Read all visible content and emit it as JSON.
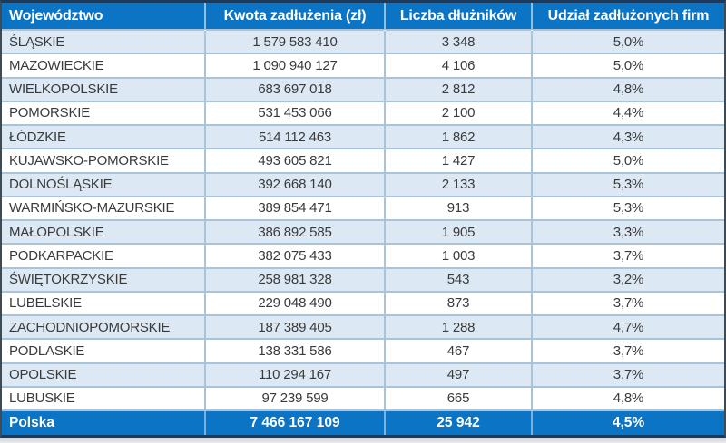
{
  "chart_data": {
    "type": "table",
    "columns": [
      "Województwo",
      "Kwota zadłużenia (zł)",
      "Liczba dłużników",
      "Udział zadłużonych firm"
    ],
    "rows": [
      [
        "ŚLĄSKIE",
        "1 579 583 410",
        "3 348",
        "5,0%"
      ],
      [
        "MAZOWIECKIE",
        "1 090 940 127",
        "4 106",
        "5,0%"
      ],
      [
        "WIELKOPOLSKIE",
        "683 697 018",
        "2 812",
        "4,8%"
      ],
      [
        "POMORSKIE",
        "531 453 066",
        "2 100",
        "4,4%"
      ],
      [
        "ŁÓDZKIE",
        "514 112 463",
        "1 862",
        "4,3%"
      ],
      [
        "KUJAWSKO-POMORSKIE",
        "493 605 821",
        "1 427",
        "5,0%"
      ],
      [
        "DOLNOŚLĄSKIE",
        "392 668 140",
        "2 133",
        "5,3%"
      ],
      [
        "WARMIŃSKO-MAZURSKIE",
        "389 854 471",
        "913",
        "5,3%"
      ],
      [
        "MAŁOPOLSKIE",
        "386 892 585",
        "1 905",
        "3,3%"
      ],
      [
        "PODKARPACKIE",
        "382 075 433",
        "1 003",
        "3,7%"
      ],
      [
        "ŚWIĘTOKRZYSKIE",
        "258 981 328",
        "543",
        "3,2%"
      ],
      [
        "LUBELSKIE",
        "229 048 490",
        "873",
        "3,7%"
      ],
      [
        "ZACHODNIOPOMORSKIE",
        "187 389 405",
        "1 288",
        "4,7%"
      ],
      [
        "PODLASKIE",
        "138 331 586",
        "467",
        "3,7%"
      ],
      [
        "OPOLSKIE",
        "110 294 167",
        "497",
        "3,7%"
      ],
      [
        "LUBUSKIE",
        "97 239 599",
        "665",
        "4,8%"
      ]
    ],
    "total_row": [
      "Polska",
      "7 466 167 109",
      "25 942",
      "4,5%"
    ]
  },
  "table": {
    "header": {
      "region": "Województwo",
      "debt": "Kwota zadłużenia (zł)",
      "debtors": "Liczba dłużników",
      "share": "Udział zadłużonych firm"
    },
    "rows": [
      {
        "region": "ŚLĄSKIE",
        "debt": "1 579 583 410",
        "debtors": "3 348",
        "share": "5,0%"
      },
      {
        "region": "MAZOWIECKIE",
        "debt": "1 090 940 127",
        "debtors": "4 106",
        "share": "5,0%"
      },
      {
        "region": "WIELKOPOLSKIE",
        "debt": "683 697 018",
        "debtors": "2 812",
        "share": "4,8%"
      },
      {
        "region": "POMORSKIE",
        "debt": "531 453 066",
        "debtors": "2 100",
        "share": "4,4%"
      },
      {
        "region": "ŁÓDZKIE",
        "debt": "514 112 463",
        "debtors": "1 862",
        "share": "4,3%"
      },
      {
        "region": "KUJAWSKO-POMORSKIE",
        "debt": "493 605 821",
        "debtors": "1 427",
        "share": "5,0%"
      },
      {
        "region": "DOLNOŚLĄSKIE",
        "debt": "392 668 140",
        "debtors": "2 133",
        "share": "5,3%"
      },
      {
        "region": "WARMIŃSKO-MAZURSKIE",
        "debt": "389 854 471",
        "debtors": "913",
        "share": "5,3%"
      },
      {
        "region": "MAŁOPOLSKIE",
        "debt": "386 892 585",
        "debtors": "1 905",
        "share": "3,3%"
      },
      {
        "region": "PODKARPACKIE",
        "debt": "382 075 433",
        "debtors": "1 003",
        "share": "3,7%"
      },
      {
        "region": "ŚWIĘTOKRZYSKIE",
        "debt": "258 981 328",
        "debtors": "543",
        "share": "3,2%"
      },
      {
        "region": "LUBELSKIE",
        "debt": "229 048 490",
        "debtors": "873",
        "share": "3,7%"
      },
      {
        "region": "ZACHODNIOPOMORSKIE",
        "debt": "187 389 405",
        "debtors": "1 288",
        "share": "4,7%"
      },
      {
        "region": "PODLASKIE",
        "debt": "138 331 586",
        "debtors": "467",
        "share": "3,7%"
      },
      {
        "region": "OPOLSKIE",
        "debt": "110 294 167",
        "debtors": "497",
        "share": "3,7%"
      },
      {
        "region": "LUBUSKIE",
        "debt": "97 239 599",
        "debtors": "665",
        "share": "4,8%"
      }
    ],
    "footer": {
      "region": "Polska",
      "debt": "7 466 167 109",
      "debtors": "25 942",
      "share": "4,5%"
    }
  },
  "colors": {
    "header_bg": "#0B74C4",
    "footer_bg": "#0B74C4",
    "row_alt_bg": "#DCE9F5",
    "row_bg": "#FFFFFF",
    "grid": "#A9C3D9",
    "header_text": "#FFFFFF",
    "body_text": "#3A3A3A",
    "outer_top": "#1A3A5E",
    "outer_side": "#3E4A54"
  }
}
